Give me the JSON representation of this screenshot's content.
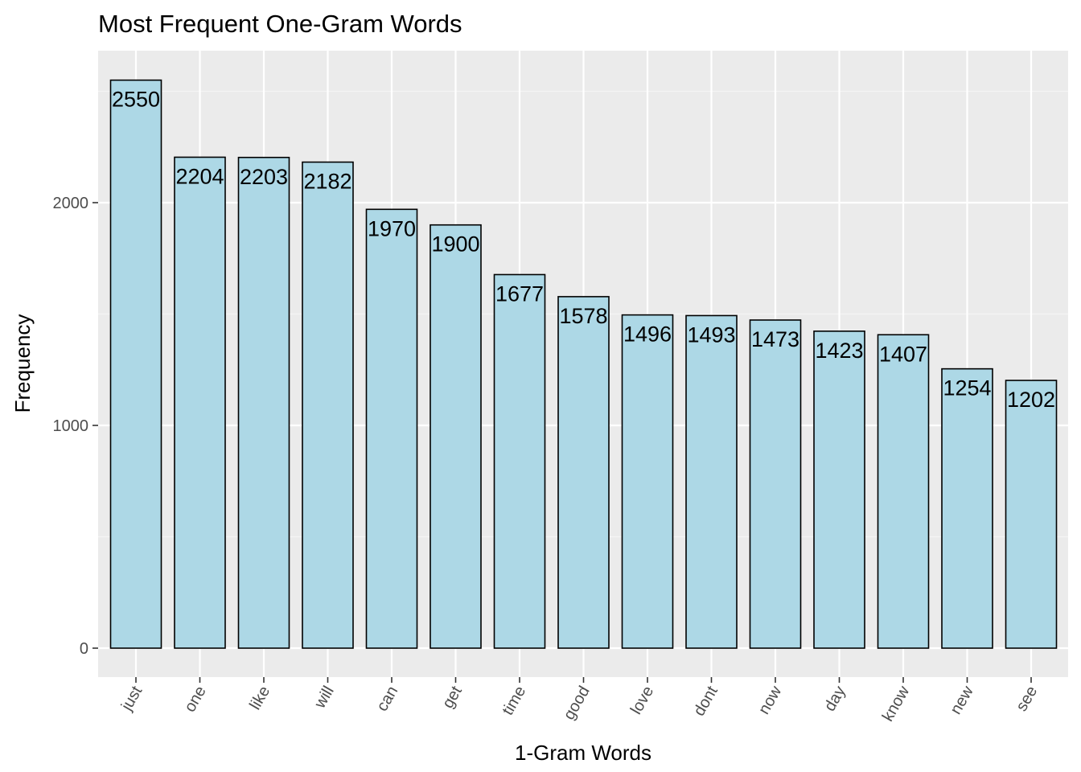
{
  "chart_data": {
    "type": "bar",
    "title": "Most Frequent One-Gram Words",
    "xlabel": "1-Gram Words",
    "ylabel": "Frequency",
    "categories": [
      "just",
      "one",
      "like",
      "will",
      "can",
      "get",
      "time",
      "good",
      "love",
      "dont",
      "now",
      "day",
      "know",
      "new",
      "see"
    ],
    "values": [
      2550,
      2204,
      2203,
      2182,
      1970,
      1900,
      1677,
      1578,
      1496,
      1493,
      1473,
      1423,
      1407,
      1254,
      1202
    ],
    "yticks": [
      "0",
      "1000",
      "2000"
    ],
    "ylim": [
      0,
      2550
    ],
    "grid": true,
    "legend": "none",
    "colors": {
      "bar_fill": "#add8e6",
      "bar_stroke": "#000000",
      "panel_bg": "#ebebeb",
      "grid_major": "#ffffff",
      "grid_minor": "#f5f5f5"
    }
  }
}
